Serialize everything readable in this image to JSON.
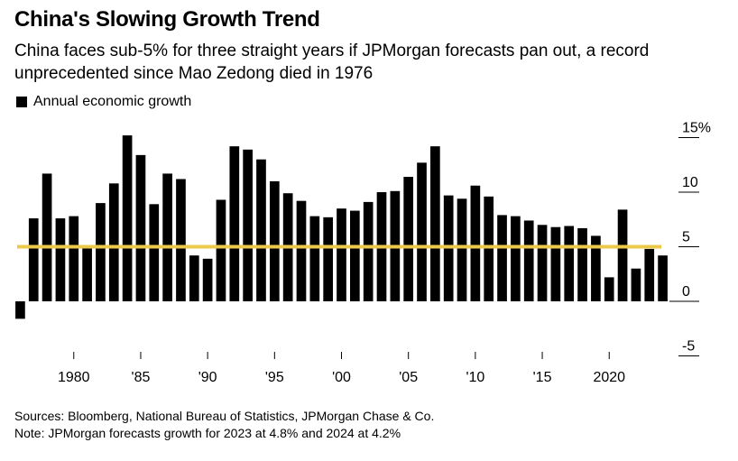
{
  "title": "China's Slowing Growth Trend",
  "subtitle": "China faces sub-5% for three straight years if JPMorgan forecasts pan out, a record unprecedented since Mao Zedong died in 1976",
  "legend": {
    "label": "Annual economic growth",
    "color": "#000000"
  },
  "footer": {
    "sources": "Sources: Bloomberg, National Bureau of Statistics, JPMorgan Chase & Co.",
    "note": "Note: JPMorgan forecasts growth for 2023 at 4.8% and 2024 at 4.2%"
  },
  "chart_data": {
    "type": "bar",
    "title": "China's Slowing Growth Trend",
    "subtitle": "China faces sub-5% for three straight years if JPMorgan forecasts pan out, a record unprecedented since Mao Zedong died in 1976",
    "xlabel": "",
    "ylabel": "",
    "ylim": [
      -5,
      15
    ],
    "grid": false,
    "legend_position": "top-left",
    "x": [
      1976,
      1977,
      1978,
      1979,
      1980,
      1981,
      1982,
      1983,
      1984,
      1985,
      1986,
      1987,
      1988,
      1989,
      1990,
      1991,
      1992,
      1993,
      1994,
      1995,
      1996,
      1997,
      1998,
      1999,
      2000,
      2001,
      2002,
      2003,
      2004,
      2005,
      2006,
      2007,
      2008,
      2009,
      2010,
      2011,
      2012,
      2013,
      2014,
      2015,
      2016,
      2017,
      2018,
      2019,
      2020,
      2021,
      2022,
      2023,
      2024
    ],
    "series": [
      {
        "name": "Annual economic growth",
        "color": "#000000",
        "values": [
          -1.6,
          7.6,
          11.7,
          7.6,
          7.8,
          5.1,
          9.0,
          10.8,
          15.2,
          13.4,
          8.9,
          11.7,
          11.2,
          4.2,
          3.9,
          9.3,
          14.2,
          13.9,
          13.0,
          11.0,
          9.9,
          9.2,
          7.8,
          7.7,
          8.5,
          8.3,
          9.1,
          10.0,
          10.1,
          11.4,
          12.7,
          14.2,
          9.7,
          9.4,
          10.6,
          9.6,
          7.9,
          7.8,
          7.4,
          7.0,
          6.8,
          6.9,
          6.7,
          6.0,
          2.2,
          8.4,
          3.0,
          4.8,
          4.2
        ]
      }
    ],
    "reference_line": {
      "value": 5,
      "color": "#ecc94b"
    },
    "y_ticks": [
      {
        "value": 15,
        "label": "15%"
      },
      {
        "value": 10,
        "label": "10"
      },
      {
        "value": 5,
        "label": "5"
      },
      {
        "value": 0,
        "label": "0"
      },
      {
        "value": -5,
        "label": "-5"
      }
    ],
    "x_ticks": [
      {
        "value": 1980,
        "label": "1980"
      },
      {
        "value": 1985,
        "label": "'85"
      },
      {
        "value": 1990,
        "label": "'90"
      },
      {
        "value": 1995,
        "label": "'95"
      },
      {
        "value": 2000,
        "label": "'00"
      },
      {
        "value": 2005,
        "label": "'05"
      },
      {
        "value": 2010,
        "label": "'10"
      },
      {
        "value": 2015,
        "label": "'15"
      },
      {
        "value": 2020,
        "label": "2020"
      }
    ]
  }
}
